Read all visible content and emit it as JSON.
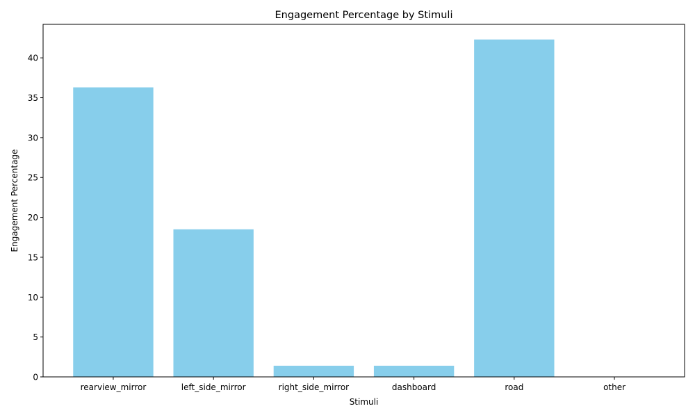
{
  "chart_data": {
    "type": "bar",
    "title": "Engagement Percentage by Stimuli",
    "xlabel": "Stimuli",
    "ylabel": "Engagement Percentage",
    "categories": [
      "rearview_mirror",
      "left_side_mirror",
      "right_side_mirror",
      "dashboard",
      "road",
      "other"
    ],
    "values": [
      36.3,
      18.5,
      1.4,
      1.4,
      42.3,
      0.0
    ],
    "ylim": [
      0,
      44.2
    ],
    "yticks": [
      0,
      5,
      10,
      15,
      20,
      25,
      30,
      35,
      40
    ],
    "bar_color": "#87CEEB",
    "grid": false,
    "legend": "none"
  }
}
